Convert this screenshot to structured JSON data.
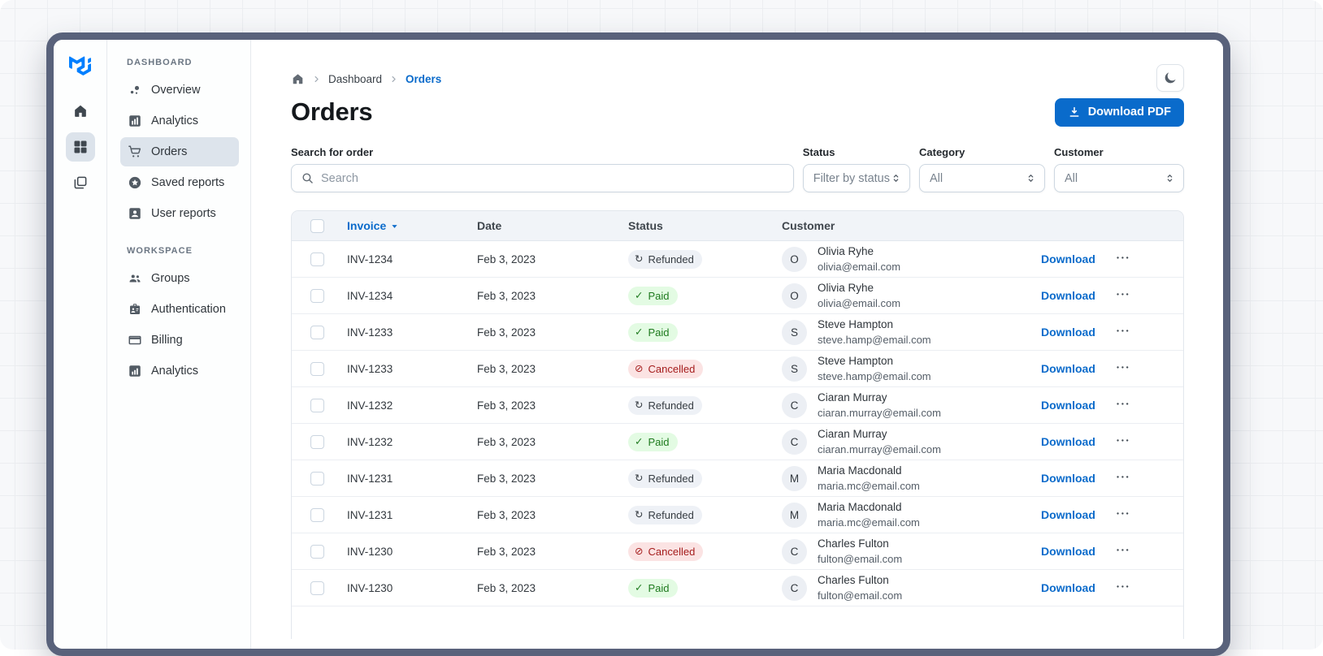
{
  "header": {
    "breadcrumb": {
      "items": [
        "Dashboard",
        "Orders"
      ]
    },
    "title": "Orders",
    "download_button_label": "Download PDF"
  },
  "rail": {
    "logo": "mui-logo",
    "items": [
      {
        "icon": "home-icon",
        "selected": false
      },
      {
        "icon": "dashboard-grid-icon",
        "selected": true
      },
      {
        "icon": "layers-icon",
        "selected": false
      }
    ]
  },
  "sidebar": {
    "sections": [
      {
        "label": "DASHBOARD",
        "items": [
          {
            "label": "Overview",
            "icon": "bubbles-icon",
            "selected": false
          },
          {
            "label": "Analytics",
            "icon": "bar-chart-icon",
            "selected": false
          },
          {
            "label": "Orders",
            "icon": "shopping-cart-icon",
            "selected": true
          },
          {
            "label": "Saved reports",
            "icon": "star-circle-icon",
            "selected": false
          },
          {
            "label": "User reports",
            "icon": "person-card-icon",
            "selected": false
          }
        ]
      },
      {
        "label": "WORKSPACE",
        "items": [
          {
            "label": "Groups",
            "icon": "people-icon",
            "selected": false
          },
          {
            "label": "Authentication",
            "icon": "badge-icon",
            "selected": false
          },
          {
            "label": "Billing",
            "icon": "credit-card-icon",
            "selected": false
          },
          {
            "label": "Analytics",
            "icon": "chart-square-icon",
            "selected": false
          }
        ]
      }
    ]
  },
  "filters": {
    "search": {
      "label": "Search for order",
      "placeholder": "Search"
    },
    "selects": [
      {
        "label": "Status",
        "value": "Filter by status"
      },
      {
        "label": "Category",
        "value": "All"
      },
      {
        "label": "Customer",
        "value": "All"
      }
    ]
  },
  "table": {
    "columns": [
      "Invoice",
      "Date",
      "Status",
      "Customer"
    ],
    "sort_column": "Invoice",
    "download_label": "Download",
    "status_icons": {
      "neutral": "↻",
      "success": "✓",
      "danger": "⊘"
    },
    "rows": [
      {
        "invoice": "INV-1234",
        "date": "Feb 3, 2023",
        "status": "Refunded",
        "status_type": "neutral",
        "initial": "O",
        "name": "Olivia Ryhe",
        "email": "olivia@email.com"
      },
      {
        "invoice": "INV-1234",
        "date": "Feb 3, 2023",
        "status": "Paid",
        "status_type": "success",
        "initial": "O",
        "name": "Olivia Ryhe",
        "email": "olivia@email.com"
      },
      {
        "invoice": "INV-1233",
        "date": "Feb 3, 2023",
        "status": "Paid",
        "status_type": "success",
        "initial": "S",
        "name": "Steve Hampton",
        "email": "steve.hamp@email.com"
      },
      {
        "invoice": "INV-1233",
        "date": "Feb 3, 2023",
        "status": "Cancelled",
        "status_type": "danger",
        "initial": "S",
        "name": "Steve Hampton",
        "email": "steve.hamp@email.com"
      },
      {
        "invoice": "INV-1232",
        "date": "Feb 3, 2023",
        "status": "Refunded",
        "status_type": "neutral",
        "initial": "C",
        "name": "Ciaran Murray",
        "email": "ciaran.murray@email.com"
      },
      {
        "invoice": "INV-1232",
        "date": "Feb 3, 2023",
        "status": "Paid",
        "status_type": "success",
        "initial": "C",
        "name": "Ciaran Murray",
        "email": "ciaran.murray@email.com"
      },
      {
        "invoice": "INV-1231",
        "date": "Feb 3, 2023",
        "status": "Refunded",
        "status_type": "neutral",
        "initial": "M",
        "name": "Maria Macdonald",
        "email": "maria.mc@email.com"
      },
      {
        "invoice": "INV-1231",
        "date": "Feb 3, 2023",
        "status": "Refunded",
        "status_type": "neutral",
        "initial": "M",
        "name": "Maria Macdonald",
        "email": "maria.mc@email.com"
      },
      {
        "invoice": "INV-1230",
        "date": "Feb 3, 2023",
        "status": "Cancelled",
        "status_type": "danger",
        "initial": "C",
        "name": "Charles Fulton",
        "email": "fulton@email.com"
      },
      {
        "invoice": "INV-1230",
        "date": "Feb 3, 2023",
        "status": "Paid",
        "status_type": "success",
        "initial": "C",
        "name": "Charles Fulton",
        "email": "fulton@email.com"
      }
    ]
  },
  "colors": {
    "accent": "#0B6BCB",
    "frame": "#59627B",
    "chip_neutral_bg": "#EEF1F6",
    "chip_success_bg": "#E3FBE3",
    "chip_success_text": "#1E7A1E",
    "chip_danger_bg": "#FBE3E3",
    "chip_danger_text": "#A51D1D",
    "selected_nav_bg": "#DDE4EC",
    "table_header_bg": "#F1F4F8"
  }
}
